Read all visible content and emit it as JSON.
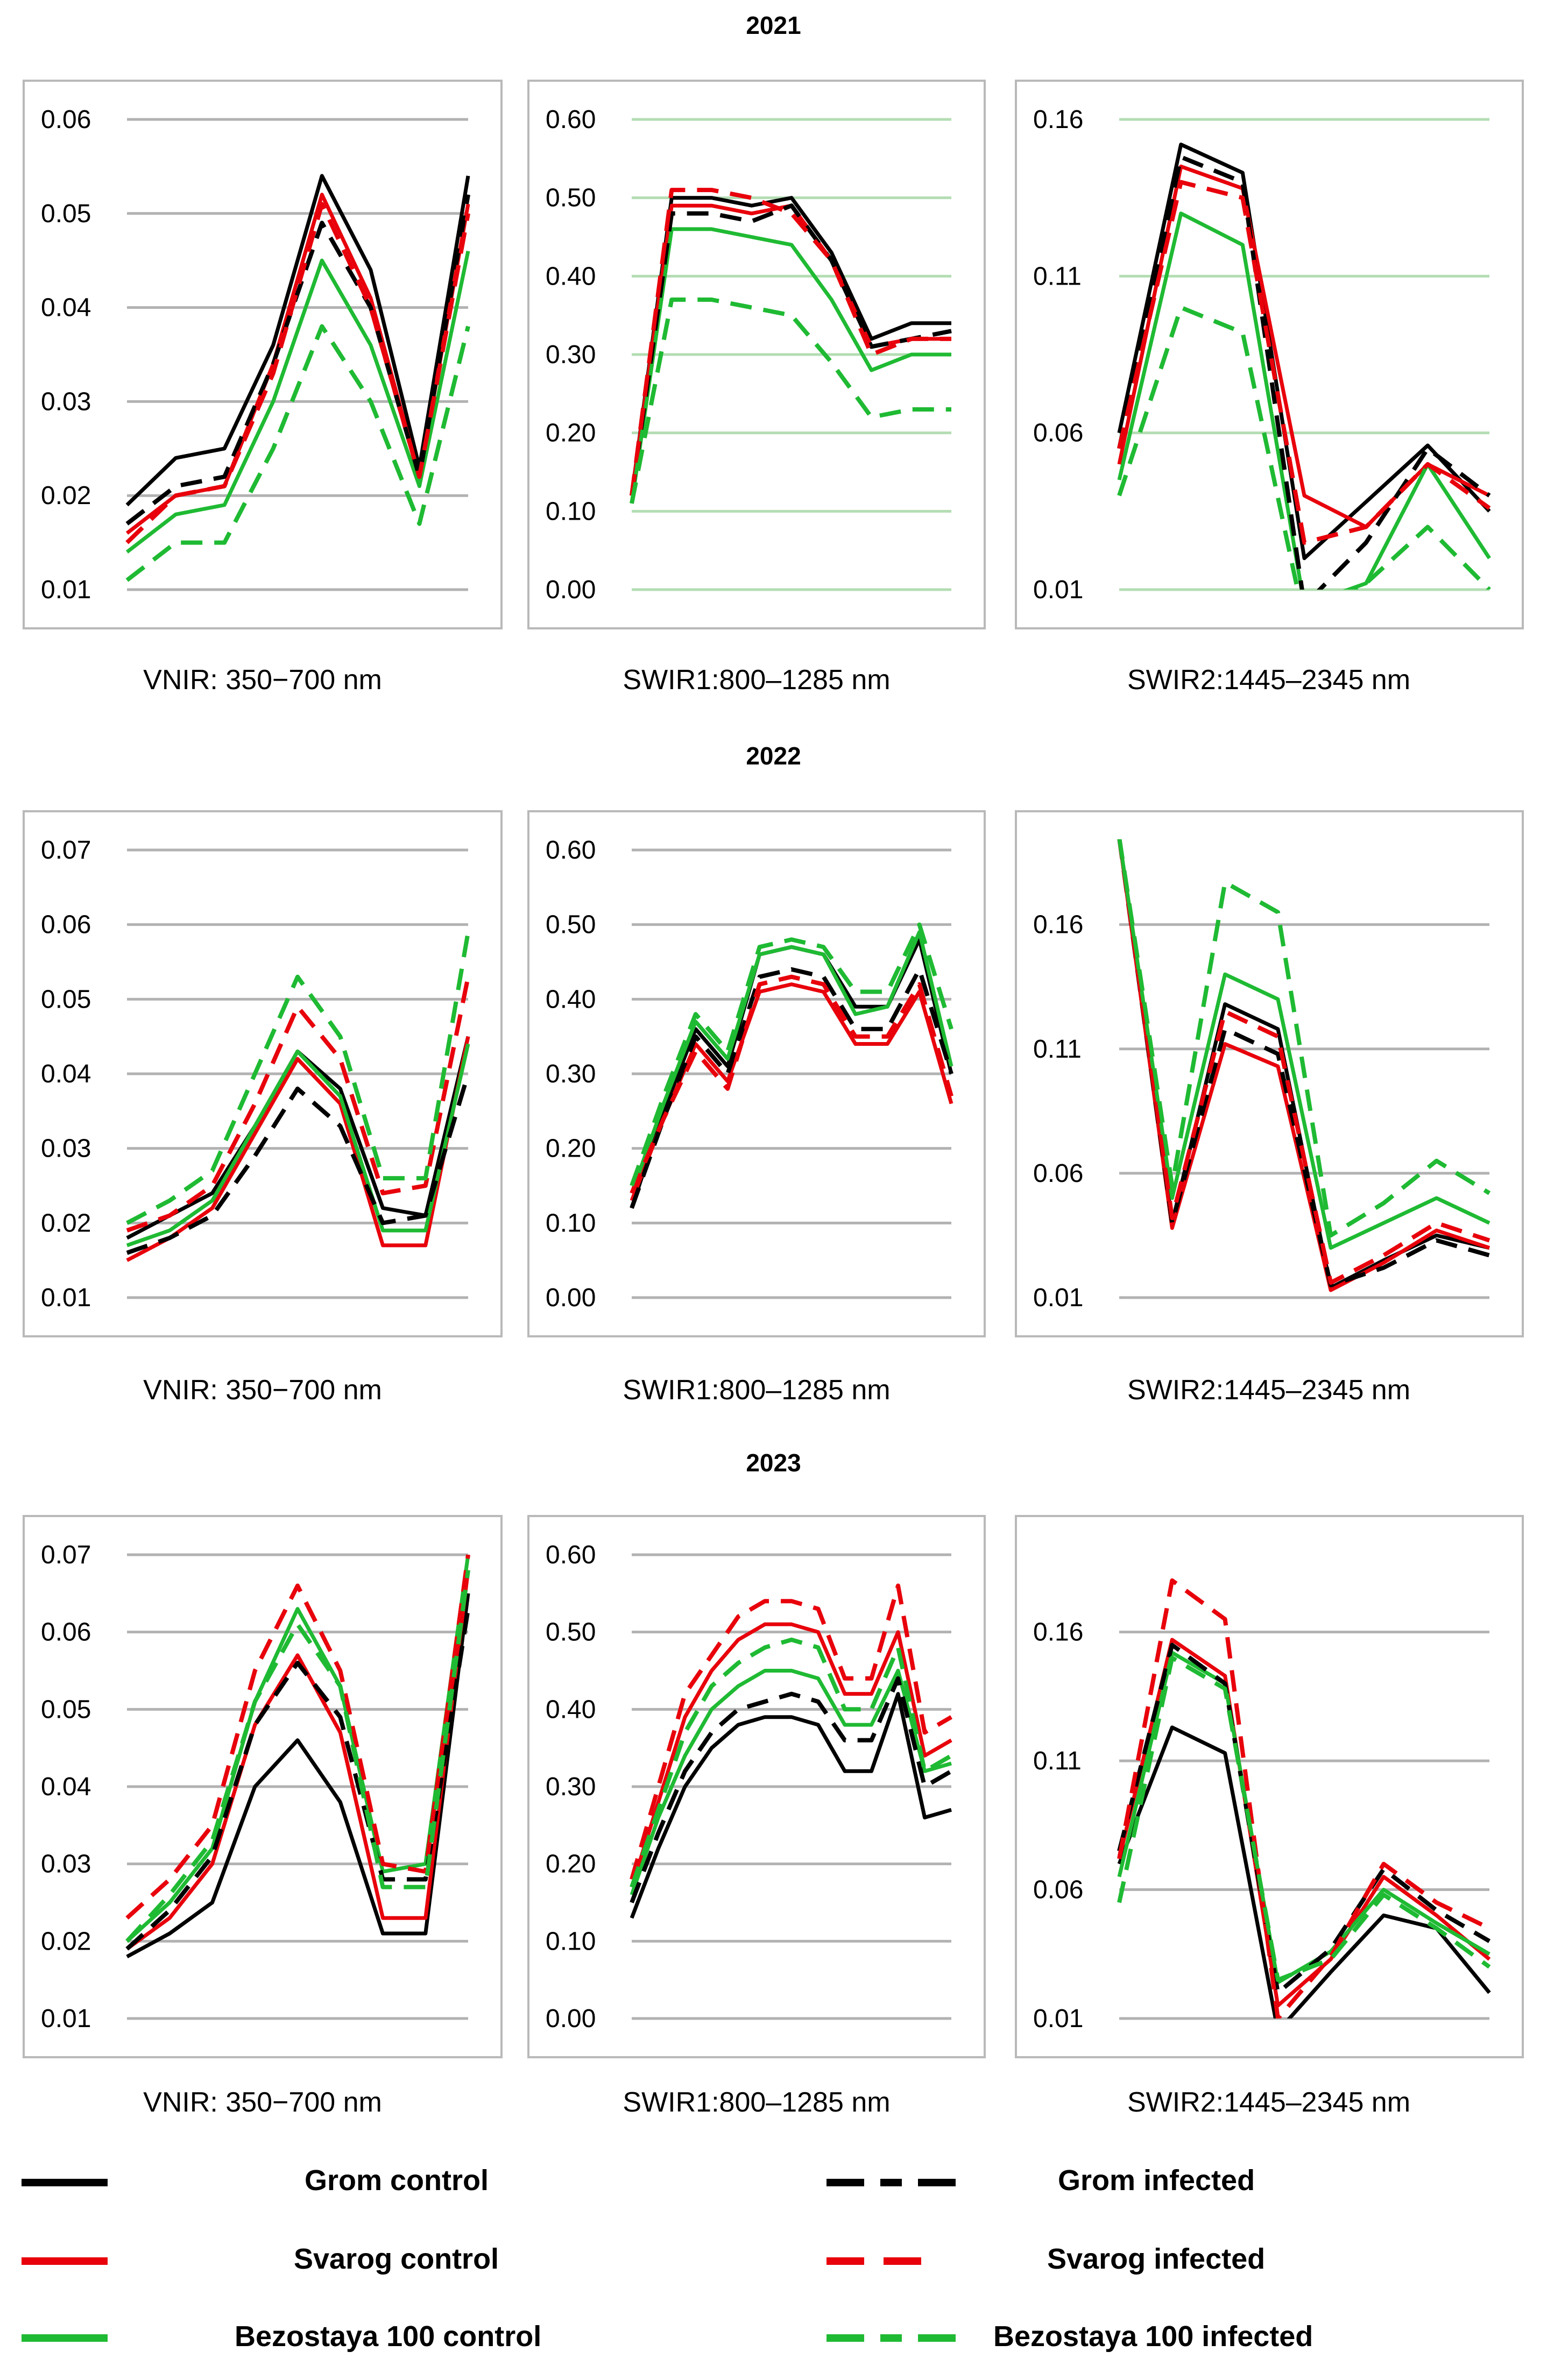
{
  "series_styles": [
    {
      "name": "Grom control",
      "color": "#000000",
      "dashed": false
    },
    {
      "name": "Svarog control",
      "color": "#e8000b",
      "dashed": false
    },
    {
      "name": "Bezostaya 100 control",
      "color": "#1fba33",
      "dashed": false
    },
    {
      "name": "Grom infected",
      "color": "#000000",
      "dashed": true
    },
    {
      "name": "Svarog infected",
      "color": "#e8000b",
      "dashed": true
    },
    {
      "name": "Bezostaya 100 infected",
      "color": "#1fba33",
      "dashed": true
    }
  ],
  "chart_data": [
    {
      "type": "line",
      "title": "2021",
      "xlabel": "VNIR: 350−700 nm",
      "ylabel": "",
      "ylim": [
        0.01,
        0.06
      ],
      "yticks": [
        "0.01",
        "0.02",
        "0.03",
        "0.04",
        "0.05",
        "0.06"
      ],
      "grid_color": "#b2b2b2",
      "series": [
        {
          "name": "Grom control",
          "values": [
            0.019,
            0.024,
            0.025,
            0.036,
            0.054,
            0.044,
            0.023,
            0.054
          ]
        },
        {
          "name": "Svarog control",
          "values": [
            0.016,
            0.02,
            0.021,
            0.034,
            0.052,
            0.041,
            0.022,
            0.051
          ]
        },
        {
          "name": "Bezostaya 100 control",
          "values": [
            0.014,
            0.018,
            0.019,
            0.03,
            0.045,
            0.036,
            0.021,
            0.046
          ]
        },
        {
          "name": "Grom infected",
          "values": [
            0.017,
            0.021,
            0.022,
            0.034,
            0.049,
            0.04,
            0.022,
            0.052
          ]
        },
        {
          "name": "Svarog infected",
          "values": [
            0.015,
            0.02,
            0.021,
            0.033,
            0.051,
            0.04,
            0.022,
            0.05
          ]
        },
        {
          "name": "Bezostaya 100 infected",
          "values": [
            0.011,
            0.015,
            0.015,
            0.025,
            0.038,
            0.03,
            0.017,
            0.038
          ]
        }
      ]
    },
    {
      "type": "line",
      "title": "2021",
      "xlabel": "SWIR1:800–1285 nm",
      "ylabel": "",
      "ylim": [
        0.0,
        0.6
      ],
      "yticks": [
        "0.00",
        "0.10",
        "0.20",
        "0.30",
        "0.40",
        "0.50",
        "0.60"
      ],
      "grid_color": "#b3ddb3",
      "series": [
        {
          "name": "Grom control",
          "values": [
            0.12,
            0.5,
            0.5,
            0.49,
            0.5,
            0.43,
            0.32,
            0.34,
            0.34
          ]
        },
        {
          "name": "Svarog control",
          "values": [
            0.12,
            0.49,
            0.49,
            0.48,
            0.49,
            0.42,
            0.31,
            0.32,
            0.32
          ]
        },
        {
          "name": "Bezostaya 100 control",
          "values": [
            0.11,
            0.46,
            0.46,
            0.45,
            0.44,
            0.37,
            0.28,
            0.3,
            0.3
          ]
        },
        {
          "name": "Grom infected",
          "values": [
            0.12,
            0.48,
            0.48,
            0.47,
            0.49,
            0.42,
            0.31,
            0.32,
            0.33
          ]
        },
        {
          "name": "Svarog infected",
          "values": [
            0.12,
            0.51,
            0.51,
            0.5,
            0.48,
            0.42,
            0.3,
            0.32,
            0.32
          ]
        },
        {
          "name": "Bezostaya 100 infected",
          "values": [
            0.11,
            0.37,
            0.37,
            0.36,
            0.35,
            0.29,
            0.22,
            0.23,
            0.23
          ]
        }
      ]
    },
    {
      "type": "line",
      "title": "2021",
      "xlabel": "SWIR2:1445–2345 nm",
      "ylabel": "",
      "ylim": [
        0.01,
        0.16
      ],
      "yticks": [
        "0.01",
        "0.06",
        "0.11",
        "0.16"
      ],
      "grid_color": "#b3ddb3",
      "series": [
        {
          "name": "Grom control",
          "values": [
            0.06,
            0.152,
            0.143,
            0.02,
            0.038,
            0.056,
            0.035
          ]
        },
        {
          "name": "Svarog control",
          "values": [
            0.05,
            0.145,
            0.138,
            0.04,
            0.03,
            0.05,
            0.04
          ]
        },
        {
          "name": "Bezostaya 100 control",
          "values": [
            0.045,
            0.13,
            0.12,
            0.005,
            0.012,
            0.05,
            0.02
          ]
        },
        {
          "name": "Grom infected",
          "values": [
            0.055,
            0.148,
            0.14,
            0.005,
            0.025,
            0.055,
            0.04
          ]
        },
        {
          "name": "Svarog infected",
          "values": [
            0.055,
            0.14,
            0.135,
            0.025,
            0.03,
            0.05,
            0.036
          ]
        },
        {
          "name": "Bezostaya 100 infected",
          "values": [
            0.04,
            0.1,
            0.092,
            0.0,
            0.012,
            0.03,
            0.01
          ]
        }
      ]
    },
    {
      "type": "line",
      "title": "2022",
      "xlabel": "VNIR: 350−700 nm",
      "ylabel": "",
      "ylim": [
        0.01,
        0.07
      ],
      "yticks": [
        "0.01",
        "0.02",
        "0.03",
        "0.04",
        "0.05",
        "0.06",
        "0.07"
      ],
      "grid_color": "#b2b2b2",
      "series": [
        {
          "name": "Grom control",
          "values": [
            0.018,
            0.021,
            0.024,
            0.033,
            0.043,
            0.038,
            0.022,
            0.021,
            0.045
          ]
        },
        {
          "name": "Svarog control",
          "values": [
            0.015,
            0.018,
            0.022,
            0.032,
            0.042,
            0.036,
            0.017,
            0.017,
            0.045
          ]
        },
        {
          "name": "Bezostaya 100 control",
          "values": [
            0.017,
            0.019,
            0.023,
            0.033,
            0.043,
            0.037,
            0.019,
            0.019,
            0.044
          ]
        },
        {
          "name": "Grom infected",
          "values": [
            0.016,
            0.018,
            0.021,
            0.029,
            0.038,
            0.033,
            0.02,
            0.021,
            0.04
          ]
        },
        {
          "name": "Svarog infected",
          "values": [
            0.019,
            0.021,
            0.025,
            0.036,
            0.049,
            0.042,
            0.024,
            0.025,
            0.053
          ]
        },
        {
          "name": "Bezostaya 100 infected",
          "values": [
            0.02,
            0.023,
            0.027,
            0.04,
            0.053,
            0.045,
            0.026,
            0.026,
            0.059
          ]
        }
      ]
    },
    {
      "type": "line",
      "title": "2022",
      "xlabel": "SWIR1:800–1285 nm",
      "ylabel": "",
      "ylim": [
        0.0,
        0.6
      ],
      "yticks": [
        "0.00",
        "0.10",
        "0.20",
        "0.30",
        "0.40",
        "0.50",
        "0.60"
      ],
      "grid_color": "#b2b2b2",
      "series": [
        {
          "name": "Grom control",
          "values": [
            0.12,
            0.25,
            0.36,
            0.31,
            0.46,
            0.47,
            0.46,
            0.39,
            0.39,
            0.48,
            0.3
          ]
        },
        {
          "name": "Svarog control",
          "values": [
            0.13,
            0.24,
            0.34,
            0.29,
            0.41,
            0.42,
            0.41,
            0.34,
            0.34,
            0.41,
            0.26
          ]
        },
        {
          "name": "Bezostaya 100 control",
          "values": [
            0.14,
            0.26,
            0.37,
            0.32,
            0.46,
            0.47,
            0.46,
            0.38,
            0.39,
            0.49,
            0.31
          ]
        },
        {
          "name": "Grom infected",
          "values": [
            0.12,
            0.24,
            0.35,
            0.3,
            0.43,
            0.44,
            0.43,
            0.36,
            0.36,
            0.44,
            0.3
          ]
        },
        {
          "name": "Svarog infected",
          "values": [
            0.14,
            0.24,
            0.33,
            0.28,
            0.42,
            0.43,
            0.42,
            0.35,
            0.35,
            0.42,
            0.27
          ]
        },
        {
          "name": "Bezostaya 100 infected",
          "values": [
            0.15,
            0.27,
            0.38,
            0.33,
            0.47,
            0.48,
            0.47,
            0.41,
            0.41,
            0.5,
            0.36
          ]
        }
      ]
    },
    {
      "type": "line",
      "title": "2022",
      "xlabel": "SWIR2:1445–2345 nm",
      "ylabel": "",
      "ylim": [
        0.01,
        0.19
      ],
      "yticks": [
        "0.01",
        "0.06",
        "0.11",
        "0.16"
      ],
      "grid_color": "#b2b2b2",
      "series": [
        {
          "name": "Grom control",
          "values": [
            0.195,
            0.04,
            0.128,
            0.118,
            0.014,
            0.025,
            0.035,
            0.03
          ]
        },
        {
          "name": "Svarog control",
          "values": [
            0.195,
            0.038,
            0.112,
            0.103,
            0.013,
            0.024,
            0.037,
            0.03
          ]
        },
        {
          "name": "Bezostaya 100 control",
          "values": [
            0.195,
            0.05,
            0.14,
            0.13,
            0.03,
            0.04,
            0.05,
            0.04
          ]
        },
        {
          "name": "Grom infected",
          "values": [
            0.195,
            0.04,
            0.118,
            0.108,
            0.015,
            0.022,
            0.033,
            0.027
          ]
        },
        {
          "name": "Svarog infected",
          "values": [
            0.195,
            0.042,
            0.125,
            0.115,
            0.016,
            0.027,
            0.04,
            0.033
          ]
        },
        {
          "name": "Bezostaya 100 infected",
          "values": [
            0.195,
            0.055,
            0.177,
            0.165,
            0.035,
            0.048,
            0.065,
            0.052
          ]
        }
      ]
    },
    {
      "type": "line",
      "title": "2023",
      "xlabel": "VNIR: 350−700 nm",
      "ylabel": "",
      "ylim": [
        0.01,
        0.07
      ],
      "yticks": [
        "0.01",
        "0.02",
        "0.03",
        "0.04",
        "0.05",
        "0.06",
        "0.07"
      ],
      "grid_color": "#b2b2b2",
      "series": [
        {
          "name": "Grom control",
          "values": [
            0.018,
            0.021,
            0.025,
            0.04,
            0.046,
            0.038,
            0.021,
            0.021,
            0.065
          ]
        },
        {
          "name": "Svarog control",
          "values": [
            0.019,
            0.023,
            0.03,
            0.048,
            0.057,
            0.047,
            0.023,
            0.023,
            0.068
          ]
        },
        {
          "name": "Bezostaya 100 control",
          "values": [
            0.02,
            0.025,
            0.032,
            0.051,
            0.063,
            0.053,
            0.029,
            0.03,
            0.07
          ]
        },
        {
          "name": "Grom infected",
          "values": [
            0.019,
            0.024,
            0.031,
            0.048,
            0.056,
            0.049,
            0.028,
            0.028,
            0.063
          ]
        },
        {
          "name": "Svarog infected",
          "values": [
            0.023,
            0.028,
            0.035,
            0.055,
            0.066,
            0.055,
            0.03,
            0.029,
            0.07
          ]
        },
        {
          "name": "Bezostaya 100 infected",
          "values": [
            0.02,
            0.026,
            0.033,
            0.051,
            0.061,
            0.053,
            0.027,
            0.027,
            0.068
          ]
        }
      ]
    },
    {
      "type": "line",
      "title": "2023",
      "xlabel": "SWIR1:800–1285 nm",
      "ylabel": "",
      "ylim": [
        0.0,
        0.6
      ],
      "yticks": [
        "0.00",
        "0.10",
        "0.20",
        "0.30",
        "0.40",
        "0.50",
        "0.60"
      ],
      "grid_color": "#b2b2b2",
      "series": [
        {
          "name": "Grom control",
          "values": [
            0.13,
            0.22,
            0.3,
            0.35,
            0.38,
            0.39,
            0.39,
            0.38,
            0.32,
            0.32,
            0.42,
            0.26,
            0.27
          ]
        },
        {
          "name": "Svarog control",
          "values": [
            0.17,
            0.28,
            0.39,
            0.45,
            0.49,
            0.51,
            0.51,
            0.5,
            0.42,
            0.42,
            0.5,
            0.34,
            0.36
          ]
        },
        {
          "name": "Bezostaya 100 control",
          "values": [
            0.16,
            0.26,
            0.34,
            0.4,
            0.43,
            0.45,
            0.45,
            0.44,
            0.38,
            0.38,
            0.45,
            0.32,
            0.33
          ]
        },
        {
          "name": "Grom infected",
          "values": [
            0.15,
            0.24,
            0.32,
            0.37,
            0.4,
            0.41,
            0.42,
            0.41,
            0.36,
            0.36,
            0.44,
            0.3,
            0.32
          ]
        },
        {
          "name": "Svarog infected",
          "values": [
            0.18,
            0.3,
            0.42,
            0.47,
            0.52,
            0.54,
            0.54,
            0.53,
            0.44,
            0.44,
            0.56,
            0.37,
            0.39
          ]
        },
        {
          "name": "Bezostaya 100 infected",
          "values": [
            0.17,
            0.27,
            0.37,
            0.43,
            0.46,
            0.48,
            0.49,
            0.48,
            0.4,
            0.4,
            0.48,
            0.32,
            0.34
          ]
        }
      ]
    },
    {
      "type": "line",
      "title": "2023",
      "xlabel": "SWIR2:1445–2345 nm",
      "ylabel": "",
      "ylim": [
        0.01,
        0.19
      ],
      "yticks": [
        "0.01",
        "0.06",
        "0.11",
        "0.16"
      ],
      "grid_color": "#b2b2b2",
      "series": [
        {
          "name": "Grom control",
          "values": [
            0.07,
            0.123,
            0.113,
            0.005,
            0.028,
            0.05,
            0.045,
            0.02
          ]
        },
        {
          "name": "Svarog control",
          "values": [
            0.072,
            0.157,
            0.143,
            0.015,
            0.033,
            0.065,
            0.05,
            0.033
          ]
        },
        {
          "name": "Bezostaya 100 control",
          "values": [
            0.065,
            0.152,
            0.14,
            0.024,
            0.036,
            0.06,
            0.047,
            0.035
          ]
        },
        {
          "name": "Grom infected",
          "values": [
            0.075,
            0.155,
            0.14,
            0.02,
            0.037,
            0.068,
            0.052,
            0.04
          ]
        },
        {
          "name": "Svarog infected",
          "values": [
            0.072,
            0.18,
            0.165,
            0.01,
            0.034,
            0.07,
            0.055,
            0.045
          ]
        },
        {
          "name": "Bezostaya 100 infected",
          "values": [
            0.055,
            0.15,
            0.138,
            0.025,
            0.033,
            0.058,
            0.045,
            0.03
          ]
        }
      ]
    }
  ]
}
